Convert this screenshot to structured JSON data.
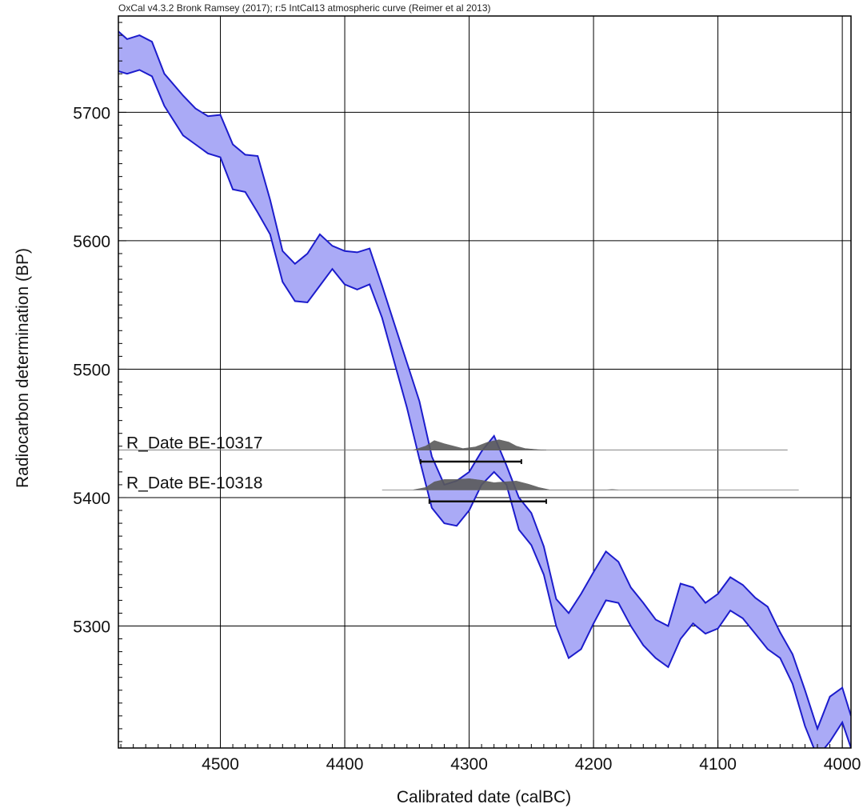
{
  "chart_data": {
    "type": "area",
    "title": "OxCal v4.3.2 Bronk Ramsey (2017); r:5 IntCal13 atmospheric curve (Reimer et al 2013)",
    "xlabel": "Calibrated date (calBC)",
    "ylabel": "Radiocarbon determination (BP)",
    "xlim": [
      4582,
      3993
    ],
    "ylim": [
      5205,
      5775
    ],
    "x_reversed": true,
    "x_ticks": [
      4500,
      4400,
      4300,
      4200,
      4100,
      4000
    ],
    "y_ticks": [
      5300,
      5400,
      5500,
      5600,
      5700
    ],
    "grid": true,
    "colors": {
      "band_fill": "#aaaaf6",
      "band_stroke": "#1c1ccc",
      "density": "#5a5a5a",
      "grid": "#000000"
    },
    "calibration_band": {
      "name": "IntCal13",
      "x": [
        4582,
        4575,
        4565,
        4555,
        4545,
        4530,
        4520,
        4510,
        4500,
        4490,
        4480,
        4470,
        4460,
        4450,
        4440,
        4430,
        4420,
        4410,
        4400,
        4390,
        4380,
        4370,
        4360,
        4350,
        4340,
        4330,
        4320,
        4310,
        4300,
        4290,
        4280,
        4270,
        4260,
        4250,
        4240,
        4230,
        4220,
        4210,
        4200,
        4190,
        4180,
        4170,
        4160,
        4150,
        4140,
        4130,
        4120,
        4110,
        4100,
        4090,
        4080,
        4070,
        4060,
        4050,
        4040,
        4030,
        4020,
        4010,
        4000,
        3993
      ],
      "upper": [
        5763,
        5757,
        5760,
        5755,
        5730,
        5713,
        5703,
        5697,
        5698,
        5675,
        5667,
        5666,
        5632,
        5592,
        5582,
        5590,
        5605,
        5596,
        5592,
        5591,
        5594,
        5565,
        5535,
        5505,
        5475,
        5432,
        5410,
        5413,
        5420,
        5436,
        5448,
        5425,
        5400,
        5388,
        5362,
        5321,
        5310,
        5325,
        5342,
        5358,
        5350,
        5330,
        5318,
        5305,
        5300,
        5333,
        5330,
        5318,
        5325,
        5338,
        5332,
        5322,
        5315,
        5295,
        5278,
        5250,
        5220,
        5245,
        5252,
        5230
      ],
      "lower": [
        5732,
        5730,
        5733,
        5728,
        5705,
        5682,
        5675,
        5668,
        5665,
        5640,
        5638,
        5622,
        5605,
        5568,
        5553,
        5552,
        5565,
        5578,
        5566,
        5562,
        5566,
        5540,
        5505,
        5470,
        5430,
        5392,
        5380,
        5378,
        5390,
        5410,
        5420,
        5410,
        5375,
        5363,
        5340,
        5300,
        5275,
        5282,
        5302,
        5320,
        5318,
        5300,
        5285,
        5275,
        5268,
        5290,
        5302,
        5294,
        5298,
        5312,
        5306,
        5294,
        5282,
        5275,
        5255,
        5222,
        5198,
        5210,
        5225,
        5205
      ]
    },
    "radiocarbon_dates": [
      {
        "label": "R_Date BE-10317",
        "baseline_bp": 5437,
        "line_x": [
          4582,
          4044
        ],
        "hpd_range": [
          4339,
          4258
        ],
        "hpd_bp": 5428,
        "density_x": [
          4345,
          4335,
          4328,
          4320,
          4305,
          4295,
          4285,
          4276,
          4268,
          4262,
          4255,
          4245,
          4238
        ],
        "density_h": [
          0,
          5,
          12,
          8,
          2,
          4,
          10,
          13,
          10,
          5,
          2,
          0.6,
          0
        ]
      },
      {
        "label": "R_Date BE-10318",
        "baseline_bp": 5406,
        "line_x": [
          4370,
          4035
        ],
        "hpd_range": [
          4332,
          4238
        ],
        "hpd_bp": 5397,
        "density_x": [
          4345,
          4335,
          4328,
          4320,
          4310,
          4300,
          4290,
          4280,
          4272,
          4262,
          4252,
          4244,
          4235,
          4190,
          4185,
          4180
        ],
        "density_h": [
          0,
          3,
          10,
          13,
          13,
          14,
          12,
          9,
          10,
          11,
          7,
          3,
          0,
          0,
          0.5,
          0
        ]
      }
    ]
  }
}
